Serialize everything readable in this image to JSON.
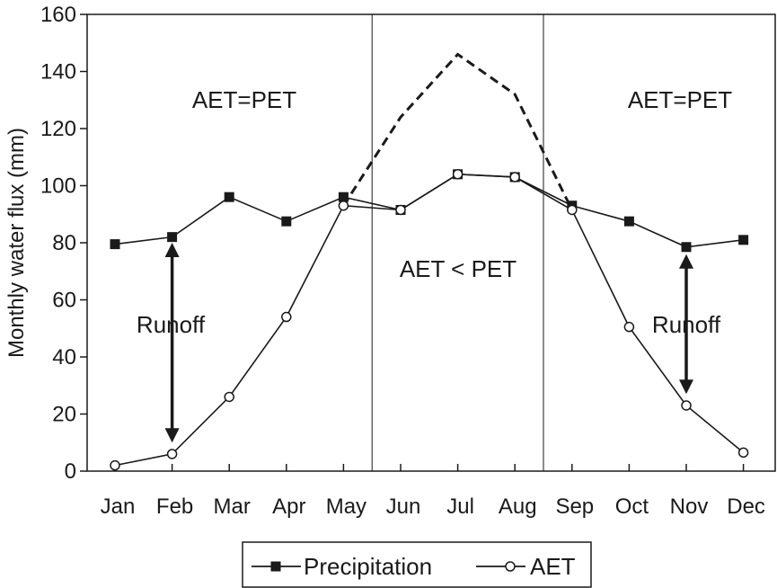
{
  "chart_data": {
    "type": "line",
    "categories": [
      "Jan",
      "Feb",
      "Mar",
      "Apr",
      "May",
      "Jun",
      "Jul",
      "Aug",
      "Sep",
      "Oct",
      "Nov",
      "Dec"
    ],
    "series": [
      {
        "name": "Precipitation",
        "marker": "filled-square",
        "color": "#1a1a1a",
        "values": [
          79.5,
          82,
          96,
          87.5,
          96,
          91.5,
          104,
          103,
          93,
          87.5,
          78.5,
          81
        ]
      },
      {
        "name": "AET",
        "marker": "open-circle",
        "color": "#1a1a1a",
        "values": [
          2,
          6,
          26,
          54,
          93,
          91.5,
          104,
          103,
          91.5,
          50.5,
          23,
          6.5
        ]
      },
      {
        "name": "",
        "style": "dashed",
        "color": "#1a1a1a",
        "x": [
          "May",
          "Jun",
          "Jul",
          "Aug",
          "Sep"
        ],
        "values": [
          93,
          124,
          146,
          132,
          91.5
        ]
      }
    ],
    "ylabel": "Monthly water flux (mm)",
    "xlabel": "",
    "ylim": [
      0,
      160
    ],
    "yticks": [
      0,
      20,
      40,
      60,
      80,
      100,
      120,
      140,
      160
    ],
    "grid": false,
    "legend_position": "bottom",
    "dividers": [
      "May-Jun",
      "Aug-Sep"
    ],
    "annotations": {
      "left_region": "AET=PET",
      "right_region": "AET=PET",
      "middle_region": "AET < PET",
      "runoff_left": "Runoff",
      "runoff_right": "Runoff"
    },
    "runoff_arrows": [
      {
        "month": "Feb",
        "from": 80,
        "to": 10
      },
      {
        "month": "Nov",
        "from": 76,
        "to": 27
      }
    ]
  }
}
